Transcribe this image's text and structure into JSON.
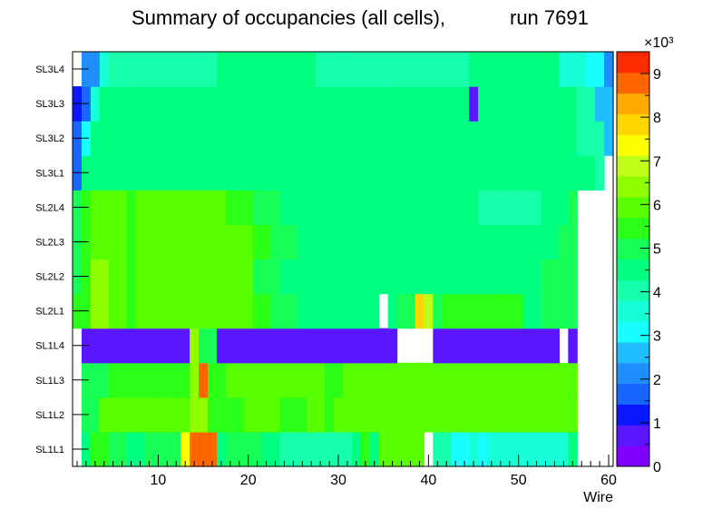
{
  "chart_data": {
    "type": "heatmap",
    "title_main": "Summary of occupancies (all cells),",
    "title_run": "run 7691",
    "xlabel": "Wire",
    "xlim": [
      0.5,
      60.5
    ],
    "x_ticks": [
      10,
      20,
      30,
      40,
      50,
      60
    ],
    "rows": [
      "SL1L1",
      "SL1L2",
      "SL1L3",
      "SL1L4",
      "SL2L1",
      "SL2L2",
      "SL2L3",
      "SL2L4",
      "SL3L1",
      "SL3L2",
      "SL3L3",
      "SL3L4"
    ],
    "z_min": 0,
    "z_max": 9500,
    "z_exponent_label": "×10³",
    "z_ticks": [
      0,
      1,
      2,
      3,
      4,
      5,
      6,
      7,
      8,
      9
    ],
    "z_tick_labels": [
      "0",
      "1",
      "2",
      "3",
      "4",
      "5",
      "6",
      "7",
      "8",
      "9"
    ],
    "z_values_unit": "thousands (×10³)",
    "z_values": [
      [
        null,
        4.6,
        5.5,
        5.5,
        5.0,
        5.0,
        4.6,
        4.6,
        5.0,
        5.0,
        5.0,
        5.0,
        7.6,
        9.0,
        9.0,
        9.0,
        4.6,
        5.0,
        5.0,
        5.0,
        5.0,
        4.6,
        4.6,
        3.9,
        3.9,
        3.9,
        3.9,
        3.9,
        3.9,
        3.9,
        3.9,
        4.3,
        5.4,
        4.6,
        6.0,
        6.0,
        6.0,
        6.0,
        6.0,
        null,
        3.9,
        3.9,
        3.3,
        3.3,
        3.6,
        3.3,
        3.6,
        3.6,
        3.6,
        3.6,
        3.6,
        3.6,
        3.6,
        3.6,
        3.6,
        4.6,
        null,
        null,
        null,
        null
      ],
      [
        null,
        5.0,
        5.0,
        5.7,
        5.7,
        5.7,
        5.7,
        5.7,
        5.7,
        5.7,
        5.7,
        5.7,
        5.7,
        6.5,
        6.5,
        5.4,
        5.4,
        5.4,
        5.4,
        5.7,
        5.7,
        5.7,
        5.7,
        5.4,
        5.4,
        5.4,
        5.7,
        5.7,
        5.4,
        5.7,
        5.7,
        5.7,
        5.7,
        5.7,
        5.7,
        5.7,
        5.7,
        5.7,
        5.7,
        5.7,
        5.7,
        5.7,
        5.7,
        5.7,
        5.7,
        5.7,
        5.7,
        5.7,
        5.7,
        5.7,
        5.7,
        5.7,
        5.7,
        5.7,
        5.7,
        5.7,
        null,
        null,
        null,
        null
      ],
      [
        null,
        5.0,
        5.0,
        5.0,
        5.4,
        5.4,
        5.4,
        5.4,
        5.4,
        5.4,
        5.4,
        5.4,
        5.4,
        6.5,
        9.0,
        5.4,
        5.4,
        6.0,
        6.0,
        6.0,
        6.0,
        6.0,
        5.7,
        5.7,
        5.7,
        5.7,
        5.7,
        6.0,
        5.4,
        5.4,
        5.7,
        5.7,
        5.7,
        5.7,
        5.7,
        5.7,
        5.7,
        5.7,
        5.7,
        5.7,
        5.7,
        5.7,
        5.7,
        5.7,
        5.7,
        5.7,
        5.7,
        5.7,
        5.7,
        5.7,
        5.7,
        5.7,
        5.7,
        5.7,
        5.7,
        5.7,
        null,
        null,
        null,
        null
      ],
      [
        null,
        0.7,
        0.7,
        0.7,
        0.7,
        0.7,
        0.7,
        0.7,
        0.7,
        0.7,
        0.7,
        0.7,
        0.7,
        6.5,
        5.0,
        5.0,
        0.7,
        0.7,
        0.7,
        0.7,
        0.7,
        0.7,
        0.7,
        0.7,
        0.7,
        0.7,
        0.7,
        0.7,
        0.7,
        0.7,
        0.7,
        0.7,
        0.7,
        0.7,
        0.7,
        0.7,
        null,
        null,
        null,
        null,
        0.7,
        0.7,
        0.7,
        0.7,
        0.7,
        0.7,
        0.7,
        0.7,
        0.7,
        0.7,
        0.7,
        0.7,
        0.7,
        0.7,
        null,
        0.7,
        null,
        null,
        null,
        null
      ],
      [
        5.4,
        5.4,
        6.5,
        6.5,
        5.7,
        5.7,
        5.4,
        6.0,
        6.0,
        6.0,
        6.0,
        6.0,
        6.0,
        6.0,
        6.0,
        6.0,
        6.0,
        6.0,
        5.7,
        5.7,
        5.4,
        5.4,
        5.0,
        5.0,
        5.0,
        4.6,
        4.6,
        4.6,
        4.6,
        4.6,
        4.6,
        4.6,
        4.6,
        4.6,
        null,
        4.6,
        5.0,
        5.0,
        7.9,
        6.8,
        5.0,
        5.4,
        5.4,
        5.4,
        5.4,
        5.4,
        5.4,
        5.4,
        5.4,
        5.4,
        4.6,
        4.6,
        5.0,
        5.0,
        5.0,
        5.0,
        null,
        null,
        null,
        null
      ],
      [
        5.0,
        5.4,
        6.5,
        6.5,
        5.7,
        5.7,
        5.4,
        6.0,
        6.0,
        6.0,
        6.0,
        6.0,
        6.0,
        6.0,
        6.0,
        6.0,
        6.0,
        6.0,
        5.7,
        5.7,
        5.0,
        5.0,
        5.0,
        4.6,
        4.6,
        4.6,
        4.6,
        4.6,
        4.6,
        4.6,
        4.6,
        4.6,
        4.6,
        4.6,
        4.6,
        4.6,
        4.6,
        4.6,
        4.6,
        4.6,
        4.6,
        4.6,
        4.6,
        4.6,
        4.6,
        4.6,
        4.6,
        4.6,
        4.6,
        4.6,
        4.6,
        4.6,
        5.0,
        5.0,
        5.0,
        5.0,
        null,
        null,
        null,
        null
      ],
      [
        5.0,
        5.4,
        6.0,
        6.0,
        5.7,
        5.7,
        5.4,
        6.0,
        6.0,
        6.0,
        6.0,
        6.0,
        6.0,
        6.0,
        6.0,
        6.0,
        6.0,
        5.7,
        5.7,
        5.7,
        5.4,
        5.4,
        5.0,
        5.0,
        5.0,
        4.6,
        4.6,
        4.6,
        4.6,
        4.3,
        4.3,
        4.3,
        4.3,
        4.3,
        4.3,
        4.3,
        4.3,
        4.3,
        4.3,
        4.3,
        4.3,
        4.3,
        4.3,
        4.3,
        4.3,
        4.3,
        4.3,
        4.3,
        4.3,
        4.3,
        4.3,
        4.3,
        4.6,
        4.6,
        5.0,
        5.0,
        null,
        null,
        null,
        null
      ],
      [
        5.0,
        5.4,
        6.0,
        6.0,
        5.7,
        5.7,
        5.4,
        6.0,
        6.0,
        6.0,
        6.0,
        6.0,
        6.0,
        6.0,
        6.0,
        6.0,
        6.0,
        5.4,
        5.4,
        5.4,
        5.0,
        5.0,
        5.0,
        4.6,
        4.6,
        4.6,
        4.6,
        4.6,
        4.6,
        4.3,
        4.3,
        4.3,
        4.3,
        4.3,
        4.3,
        4.3,
        4.3,
        4.3,
        4.3,
        4.3,
        4.3,
        4.3,
        4.3,
        4.3,
        4.3,
        3.9,
        3.9,
        3.9,
        3.9,
        3.9,
        3.9,
        3.9,
        4.6,
        4.6,
        4.6,
        5.0,
        null,
        null,
        null,
        null
      ],
      [
        1.8,
        4.3,
        4.6,
        4.6,
        4.6,
        4.6,
        4.6,
        4.6,
        4.6,
        4.6,
        4.6,
        4.6,
        4.6,
        4.6,
        4.6,
        4.6,
        4.6,
        4.6,
        4.6,
        4.6,
        4.6,
        4.6,
        4.6,
        4.6,
        4.6,
        4.6,
        4.6,
        4.6,
        4.6,
        4.6,
        4.6,
        4.6,
        4.6,
        4.6,
        4.6,
        4.6,
        4.6,
        4.6,
        4.6,
        4.6,
        4.6,
        4.6,
        4.6,
        4.6,
        4.6,
        4.6,
        4.6,
        4.6,
        4.6,
        4.6,
        4.6,
        4.6,
        4.6,
        4.6,
        4.6,
        4.3,
        4.3,
        4.3,
        3.9,
        null
      ],
      [
        1.8,
        3.2,
        4.3,
        4.3,
        4.3,
        4.3,
        4.3,
        4.3,
        4.3,
        4.3,
        4.3,
        4.3,
        4.3,
        4.3,
        4.3,
        4.3,
        4.3,
        4.3,
        4.3,
        4.3,
        4.3,
        4.3,
        4.3,
        4.3,
        4.3,
        4.3,
        4.3,
        4.3,
        4.3,
        4.3,
        4.3,
        4.3,
        4.3,
        4.3,
        4.3,
        4.3,
        4.3,
        4.3,
        4.3,
        4.3,
        4.3,
        4.3,
        4.3,
        4.3,
        4.3,
        4.3,
        4.3,
        4.3,
        4.3,
        4.3,
        4.3,
        4.3,
        4.3,
        4.3,
        4.3,
        4.3,
        3.9,
        3.9,
        3.9,
        2.5
      ],
      [
        1.4,
        1.8,
        3.6,
        4.3,
        4.3,
        4.3,
        4.3,
        4.3,
        4.3,
        4.3,
        4.3,
        4.3,
        4.3,
        4.3,
        4.3,
        4.3,
        4.3,
        4.3,
        4.3,
        4.3,
        4.3,
        4.3,
        4.3,
        4.3,
        4.3,
        4.3,
        4.3,
        4.3,
        4.3,
        4.3,
        4.3,
        4.3,
        4.3,
        4.3,
        4.3,
        4.3,
        4.3,
        4.3,
        4.3,
        4.3,
        4.3,
        4.3,
        4.3,
        4.3,
        0.7,
        4.3,
        4.3,
        4.3,
        4.3,
        4.3,
        4.3,
        4.3,
        4.3,
        4.3,
        4.3,
        4.3,
        3.9,
        3.9,
        2.5,
        2.5
      ],
      [
        null,
        2.1,
        2.1,
        3.6,
        3.9,
        3.9,
        3.9,
        3.9,
        3.9,
        3.9,
        3.9,
        3.9,
        3.9,
        3.9,
        3.9,
        3.9,
        4.3,
        4.3,
        4.3,
        4.3,
        4.3,
        4.3,
        4.3,
        4.3,
        4.3,
        4.3,
        4.3,
        3.9,
        3.9,
        3.9,
        3.9,
        3.9,
        3.9,
        3.9,
        3.9,
        3.9,
        3.9,
        3.9,
        3.9,
        3.9,
        3.9,
        3.9,
        3.9,
        3.9,
        4.3,
        4.3,
        4.3,
        4.3,
        4.3,
        4.3,
        4.3,
        4.3,
        4.3,
        4.3,
        3.6,
        3.6,
        3.6,
        3.2,
        3.2,
        2.1
      ]
    ]
  }
}
